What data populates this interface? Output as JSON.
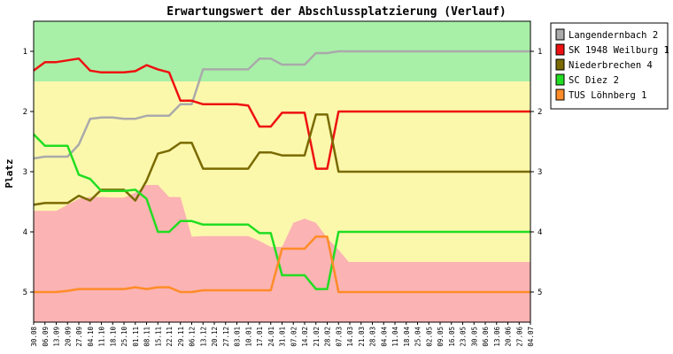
{
  "chart_data": {
    "type": "line",
    "title": "Erwartungswert der Abschlussplatzierung (Verlauf)",
    "ylabel": "Platz",
    "xlabel": "",
    "ylim": [
      5.5,
      0.5
    ],
    "yticks": [
      1,
      2,
      3,
      4,
      5
    ],
    "grid": false,
    "legend_position": "top-right",
    "x": [
      "30.08",
      "06.09",
      "13.09",
      "20.09",
      "27.09",
      "04.10",
      "11.10",
      "18.10",
      "25.10",
      "01.11",
      "08.11",
      "15.11",
      "22.11",
      "29.11",
      "06.12",
      "13.12",
      "20.12",
      "27.12",
      "03.01",
      "10.01",
      "17.01",
      "24.01",
      "31.01",
      "07.02",
      "14.02",
      "21.02",
      "28.02",
      "07.03",
      "14.03",
      "21.03",
      "28.03",
      "04.04",
      "11.04",
      "18.04",
      "25.04",
      "02.05",
      "09.05",
      "16.05",
      "23.05",
      "30.05",
      "06.06",
      "13.06",
      "20.06",
      "27.06",
      "04.07"
    ],
    "bands": [
      {
        "from": 0.5,
        "to": 1.5,
        "color": "#a8f0a8"
      },
      {
        "from": 1.5,
        "to": 4.5,
        "color": "#fbf8ac"
      },
      {
        "from": 4.5,
        "to": 5.5,
        "color": "#fbb3b3"
      }
    ],
    "relegation_zone": [
      3.65,
      3.65,
      3.65,
      3.55,
      3.45,
      3.42,
      3.42,
      3.43,
      3.43,
      3.35,
      3.22,
      3.22,
      3.42,
      3.42,
      4.08,
      4.07,
      4.07,
      4.07,
      4.07,
      4.07,
      4.15,
      4.25,
      4.25,
      3.85,
      3.78,
      3.85,
      4.1,
      4.3,
      4.52,
      4.52,
      4.52,
      4.52,
      4.52,
      4.52,
      4.52,
      4.52,
      4.52,
      4.52,
      4.52,
      4.52,
      4.52,
      4.52,
      4.52,
      4.52,
      4.52
    ],
    "series": [
      {
        "name": "Langendernbach 2",
        "color": "#aaaaaa",
        "values": [
          2.78,
          2.75,
          2.75,
          2.75,
          2.55,
          2.12,
          2.1,
          2.1,
          2.12,
          2.12,
          2.07,
          2.07,
          2.07,
          1.88,
          1.88,
          1.3,
          1.3,
          1.3,
          1.3,
          1.3,
          1.12,
          1.12,
          1.22,
          1.22,
          1.22,
          1.03,
          1.03,
          1.0,
          1.0,
          1.0,
          1.0,
          1.0,
          1.0,
          1.0,
          1.0,
          1.0,
          1.0,
          1.0,
          1.0,
          1.0,
          1.0,
          1.0,
          1.0,
          1.0,
          1.0
        ]
      },
      {
        "name": "SK 1948 Weilburg 1",
        "color": "#ee1111",
        "values": [
          1.32,
          1.18,
          1.18,
          1.15,
          1.12,
          1.32,
          1.35,
          1.35,
          1.35,
          1.33,
          1.23,
          1.3,
          1.35,
          1.82,
          1.82,
          1.88,
          1.88,
          1.88,
          1.88,
          1.9,
          2.25,
          2.25,
          2.02,
          2.02,
          2.02,
          2.95,
          2.95,
          2.0,
          2.0,
          2.0,
          2.0,
          2.0,
          2.0,
          2.0,
          2.0,
          2.0,
          2.0,
          2.0,
          2.0,
          2.0,
          2.0,
          2.0,
          2.0,
          2.0,
          2.0
        ]
      },
      {
        "name": "Niederbrechen 4",
        "color": "#7a6a00",
        "values": [
          3.55,
          3.52,
          3.52,
          3.52,
          3.4,
          3.48,
          3.3,
          3.3,
          3.3,
          3.48,
          3.15,
          2.7,
          2.65,
          2.52,
          2.52,
          2.95,
          2.95,
          2.95,
          2.95,
          2.95,
          2.68,
          2.68,
          2.73,
          2.73,
          2.73,
          2.05,
          2.05,
          3.0,
          3.0,
          3.0,
          3.0,
          3.0,
          3.0,
          3.0,
          3.0,
          3.0,
          3.0,
          3.0,
          3.0,
          3.0,
          3.0,
          3.0,
          3.0,
          3.0,
          3.0
        ]
      },
      {
        "name": "SC Diez 2",
        "color": "#22dd22",
        "values": [
          2.38,
          2.57,
          2.57,
          2.57,
          3.05,
          3.12,
          3.32,
          3.32,
          3.32,
          3.3,
          3.45,
          4.0,
          4.0,
          3.82,
          3.82,
          3.88,
          3.88,
          3.88,
          3.88,
          3.88,
          4.02,
          4.02,
          4.72,
          4.72,
          4.72,
          4.95,
          4.95,
          4.0,
          4.0,
          4.0,
          4.0,
          4.0,
          4.0,
          4.0,
          4.0,
          4.0,
          4.0,
          4.0,
          4.0,
          4.0,
          4.0,
          4.0,
          4.0,
          4.0,
          4.0
        ]
      },
      {
        "name": "TUS Löhnberg 1",
        "color": "#ff8c28",
        "values": [
          5.0,
          5.0,
          5.0,
          4.98,
          4.95,
          4.95,
          4.95,
          4.95,
          4.95,
          4.92,
          4.95,
          4.92,
          4.92,
          5.0,
          5.0,
          4.97,
          4.97,
          4.97,
          4.97,
          4.97,
          4.97,
          4.97,
          4.28,
          4.28,
          4.28,
          4.08,
          4.08,
          5.0,
          5.0,
          5.0,
          5.0,
          5.0,
          5.0,
          5.0,
          5.0,
          5.0,
          5.0,
          5.0,
          5.0,
          5.0,
          5.0,
          5.0,
          5.0,
          5.0,
          5.0
        ]
      }
    ]
  }
}
